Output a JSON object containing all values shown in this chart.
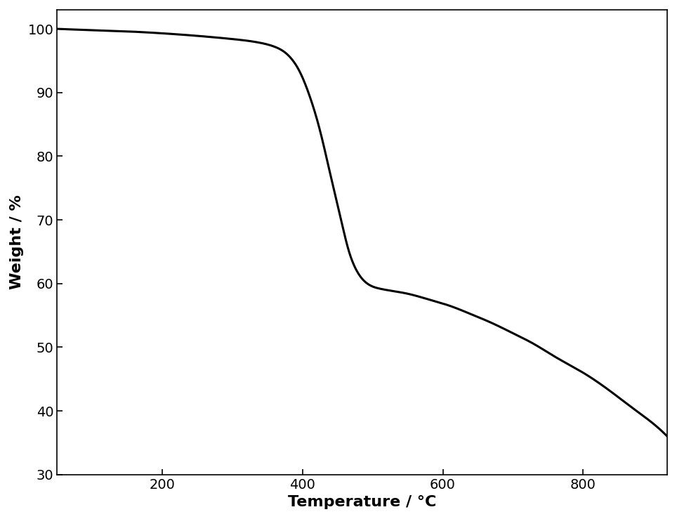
{
  "xlabel": "Temperature / °C",
  "ylabel": "Weight / %",
  "xlim": [
    50,
    920
  ],
  "ylim": [
    30,
    103
  ],
  "xticks": [
    200,
    400,
    600,
    800
  ],
  "yticks": [
    30,
    40,
    50,
    60,
    70,
    80,
    90,
    100
  ],
  "line_color": "#000000",
  "line_width": 2.2,
  "background_color": "#ffffff",
  "label_fontsize": 16,
  "tick_fontsize": 14,
  "curve_points": {
    "x": [
      50,
      100,
      150,
      200,
      250,
      300,
      340,
      360,
      375,
      385,
      395,
      410,
      425,
      440,
      455,
      465,
      475,
      490,
      510,
      530,
      550,
      580,
      610,
      640,
      670,
      700,
      730,
      760,
      800,
      840,
      870,
      900,
      920
    ],
    "y": [
      100.0,
      99.8,
      99.6,
      99.3,
      98.9,
      98.4,
      97.8,
      97.2,
      96.3,
      95.2,
      93.5,
      89.5,
      84.0,
      77.0,
      70.0,
      65.5,
      62.5,
      60.2,
      59.2,
      58.8,
      58.4,
      57.5,
      56.5,
      55.2,
      53.8,
      52.2,
      50.5,
      48.5,
      46.0,
      43.0,
      40.5,
      38.0,
      36.0
    ]
  }
}
